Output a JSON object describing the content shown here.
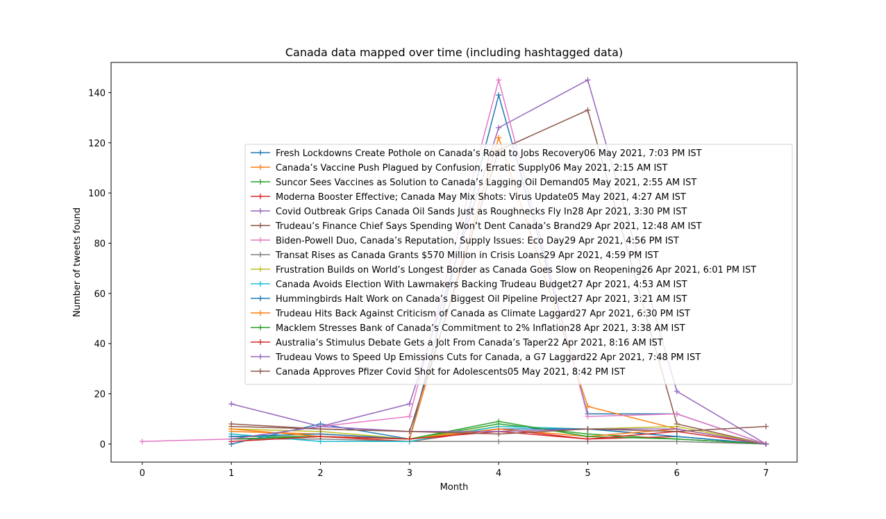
{
  "colors": [
    "#1f77b4",
    "#ff7f0e",
    "#2ca02c",
    "#d62728",
    "#9467bd",
    "#8c564b",
    "#e377c2",
    "#7f7f7f",
    "#bcbd22",
    "#17becf"
  ],
  "chart_data": {
    "type": "line",
    "title": "Canada data mapped over time (including hashtagged data)",
    "xlabel": "Month",
    "ylabel": "Number of tweets found",
    "xlim": [
      -0.35,
      7.35
    ],
    "ylim": [
      -7.2,
      152
    ],
    "xticks": [
      0,
      1,
      2,
      3,
      4,
      5,
      6,
      7
    ],
    "yticks": [
      0,
      20,
      40,
      60,
      80,
      100,
      120,
      140
    ],
    "grid": false,
    "legend_position": "center-right",
    "marker": "+",
    "series": [
      {
        "name": "Fresh Lockdowns Create Pothole on Canada’s Road to Jobs Recovery06 May 2021, 7:03 PM IST",
        "x": [
          1,
          2,
          3,
          4,
          5,
          6,
          7
        ],
        "y": [
          0,
          8,
          2,
          139,
          12,
          12,
          0
        ],
        "color": "#1f77b4"
      },
      {
        "name": "Canada’s Vaccine Push Plagued by Confusion, Erratic Supply06 May 2021, 2:15 AM IST",
        "x": [
          1,
          2,
          3,
          4,
          5,
          6,
          7
        ],
        "y": [
          5,
          4,
          2,
          122,
          15,
          6,
          0
        ],
        "color": "#ff7f0e"
      },
      {
        "name": "Suncor Sees Vaccines as Solution to Canada’s Lagging Oil Demand05 May 2021, 2:55 AM IST",
        "x": [
          1,
          2,
          3,
          4,
          5,
          6,
          7
        ],
        "y": [
          3,
          3,
          2,
          8,
          4,
          2,
          0
        ],
        "color": "#2ca02c"
      },
      {
        "name": "Moderna Booster Effective; Canada May Mix Shots: Virus Update05 May 2021, 4:27 AM IST",
        "x": [
          1,
          2,
          3,
          4,
          5,
          6,
          7
        ],
        "y": [
          2,
          3,
          1,
          6,
          2,
          3,
          0
        ],
        "color": "#d62728"
      },
      {
        "name": "Covid Outbreak Grips Canada Oil Sands Just as Roughnecks Fly In28 Apr 2021, 3:30 PM IST",
        "x": [
          1,
          2,
          3,
          4,
          5,
          6,
          7
        ],
        "y": [
          16,
          7,
          16,
          126,
          145,
          21,
          0
        ],
        "color": "#9467bd"
      },
      {
        "name": "Trudeau’s Finance Chief Says Spending Won’t Dent Canada’s Brand29 Apr 2021, 12:48 AM IST",
        "x": [
          1,
          2,
          3,
          4,
          5,
          6,
          7
        ],
        "y": [
          7,
          6,
          5,
          117,
          133,
          8,
          0
        ],
        "color": "#8c564b"
      },
      {
        "name": "Biden-Powell Duo, Canada’s Reputation, Supply Issues: Eco Day29 Apr 2021, 4:56 PM IST",
        "x": [
          0,
          1,
          2,
          3,
          4,
          5,
          6,
          7
        ],
        "y": [
          1,
          2,
          7,
          11,
          145,
          11,
          12,
          0
        ],
        "color": "#e377c2"
      },
      {
        "name": "Transat Rises as Canada Grants $570 Million in Crisis Loans29 Apr 2021, 4:59 PM IST",
        "x": [
          1,
          2,
          3,
          4,
          5,
          6,
          7
        ],
        "y": [
          2,
          2,
          1,
          1,
          1,
          1,
          0
        ],
        "color": "#7f7f7f"
      },
      {
        "name": "Frustration Builds on World’s Longest Border as Canada Goes Slow on Reopening26 Apr 2021, 6:01 PM IST",
        "x": [
          1,
          2,
          3,
          4,
          5,
          6,
          7
        ],
        "y": [
          6,
          5,
          2,
          7,
          6,
          7,
          0
        ],
        "color": "#bcbd22"
      },
      {
        "name": "Canada Avoids Election With Lawmakers Backing Trudeau Budget27 Apr 2021, 4:53 AM IST",
        "x": [
          1,
          2,
          3,
          4,
          5,
          6,
          7
        ],
        "y": [
          4,
          1,
          1,
          7,
          6,
          3,
          0
        ],
        "color": "#17becf"
      },
      {
        "name": "Hummingbirds Halt Work on Canada’s Biggest Oil Pipeline Project27 Apr 2021, 3:21 AM IST",
        "x": [
          1,
          2,
          3,
          4,
          5,
          6,
          7
        ],
        "y": [
          3,
          4,
          2,
          6,
          6,
          3,
          0
        ],
        "color": "#1f77b4"
      },
      {
        "name": "Trudeau Hits Back Against Criticism of Canada as Climate Laggard27 Apr 2021, 6:30 PM IST",
        "x": [
          1,
          2,
          3,
          4,
          5,
          6,
          7
        ],
        "y": [
          6,
          3,
          2,
          6,
          3,
          6,
          0
        ],
        "color": "#ff7f0e"
      },
      {
        "name": "Macklem Stresses Bank of Canada’s Commitment to 2% Inflation28 Apr 2021, 3:38 AM IST",
        "x": [
          1,
          2,
          3,
          4,
          5,
          6,
          7
        ],
        "y": [
          2,
          3,
          2,
          9,
          3,
          2,
          0
        ],
        "color": "#2ca02c"
      },
      {
        "name": "Australia’s Stimulus Debate Gets a Jolt From Canada’s Taper22 Apr 2021, 8:16 AM IST",
        "x": [
          1,
          2,
          3,
          4,
          5,
          6,
          7
        ],
        "y": [
          1,
          3,
          2,
          5,
          2,
          5,
          0
        ],
        "color": "#d62728"
      },
      {
        "name": "Trudeau Vows to Speed Up Emissions Cuts for Canada, a G7 Laggard22 Apr 2021, 7:48 PM IST",
        "x": [
          1,
          2,
          3,
          4,
          5,
          6,
          7
        ],
        "y": [
          2,
          7,
          5,
          5,
          6,
          6,
          0
        ],
        "color": "#9467bd"
      },
      {
        "name": "Canada Approves Pfizer Covid Shot for Adolescents05 May 2021, 8:42 PM IST",
        "x": [
          1,
          2,
          3,
          4,
          5,
          6,
          7
        ],
        "y": [
          8,
          6,
          5,
          4,
          6,
          5,
          7
        ],
        "color": "#8c564b"
      }
    ]
  }
}
